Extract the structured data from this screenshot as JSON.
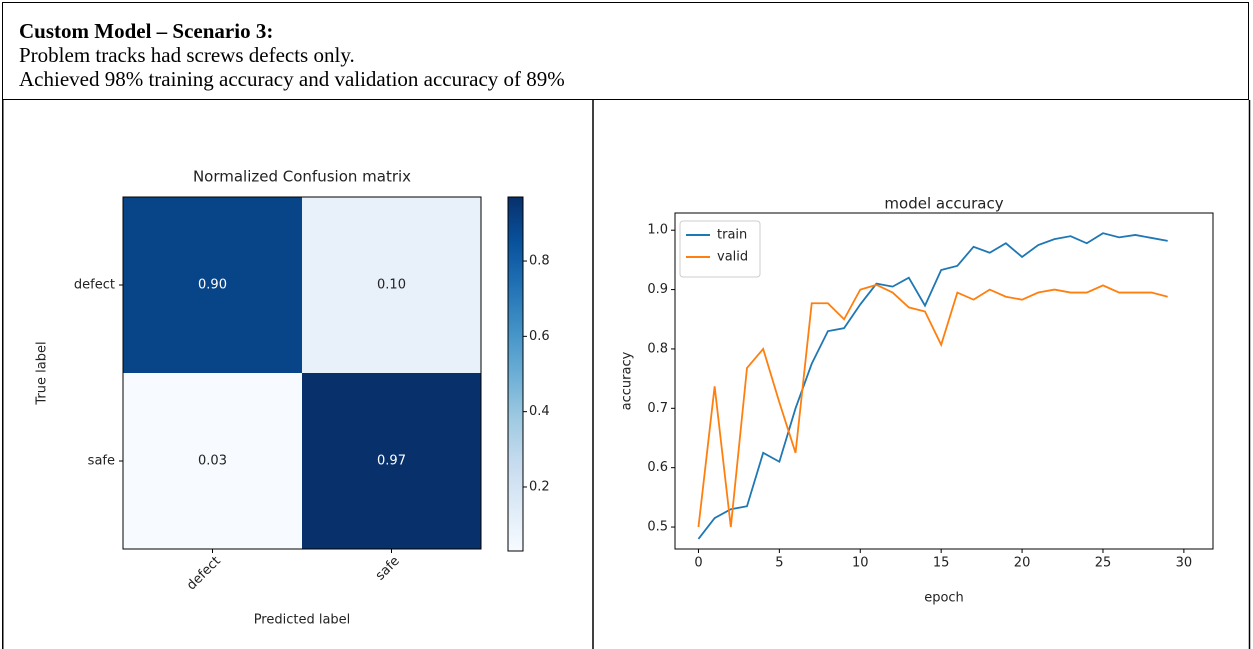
{
  "header": {
    "title": "Custom Model – Scenario 3:",
    "lines": [
      "Problem tracks had screws defects only.",
      "Achieved 98% training accuracy and validation accuracy of 89%"
    ]
  },
  "chart_data": [
    {
      "type": "heatmap",
      "title": "Normalized Confusion matrix",
      "xlabel": "Predicted label",
      "ylabel": "True label",
      "x_categories": [
        "defect",
        "safe"
      ],
      "y_categories": [
        "defect",
        "safe"
      ],
      "values": [
        [
          0.9,
          0.1
        ],
        [
          0.03,
          0.97
        ]
      ],
      "value_labels": [
        [
          "0.90",
          "0.10"
        ],
        [
          "0.03",
          "0.97"
        ]
      ],
      "cmap": "Blues",
      "clim": [
        0.03,
        0.97
      ],
      "cticks": [
        0.2,
        0.4,
        0.6,
        0.8
      ]
    },
    {
      "type": "line",
      "title": "model accuracy",
      "xlabel": "epoch",
      "ylabel": "accuracy",
      "x": [
        0,
        1,
        2,
        3,
        4,
        5,
        6,
        7,
        8,
        9,
        10,
        11,
        12,
        13,
        14,
        15,
        16,
        17,
        18,
        19,
        20,
        21,
        22,
        23,
        24,
        25,
        26,
        27,
        28,
        29
      ],
      "series": [
        {
          "name": "train",
          "color": "#1f77b4",
          "values": [
            0.48,
            0.515,
            0.53,
            0.535,
            0.625,
            0.61,
            0.7,
            0.775,
            0.83,
            0.835,
            0.875,
            0.91,
            0.905,
            0.92,
            0.873,
            0.933,
            0.94,
            0.972,
            0.962,
            0.978,
            0.955,
            0.975,
            0.985,
            0.99,
            0.978,
            0.995,
            0.988,
            0.992,
            0.987,
            0.982
          ]
        },
        {
          "name": "valid",
          "color": "#ff7f0e",
          "values": [
            0.5,
            0.737,
            0.5,
            0.768,
            0.8,
            0.71,
            0.625,
            0.877,
            0.877,
            0.85,
            0.9,
            0.908,
            0.895,
            0.87,
            0.863,
            0.807,
            0.895,
            0.883,
            0.9,
            0.888,
            0.883,
            0.895,
            0.9,
            0.895,
            0.895,
            0.907,
            0.895,
            0.895,
            0.895,
            0.888
          ]
        }
      ],
      "xlim": [
        -1.45,
        31.8
      ],
      "xticks": [
        0,
        5,
        10,
        15,
        20,
        25,
        30
      ],
      "ylim": [
        0.463,
        1.029
      ],
      "yticks": [
        0.5,
        0.6,
        0.7,
        0.8,
        0.9,
        {
          "value": 1,
          "label": "1.0"
        }
      ],
      "legend": "upper left"
    }
  ]
}
